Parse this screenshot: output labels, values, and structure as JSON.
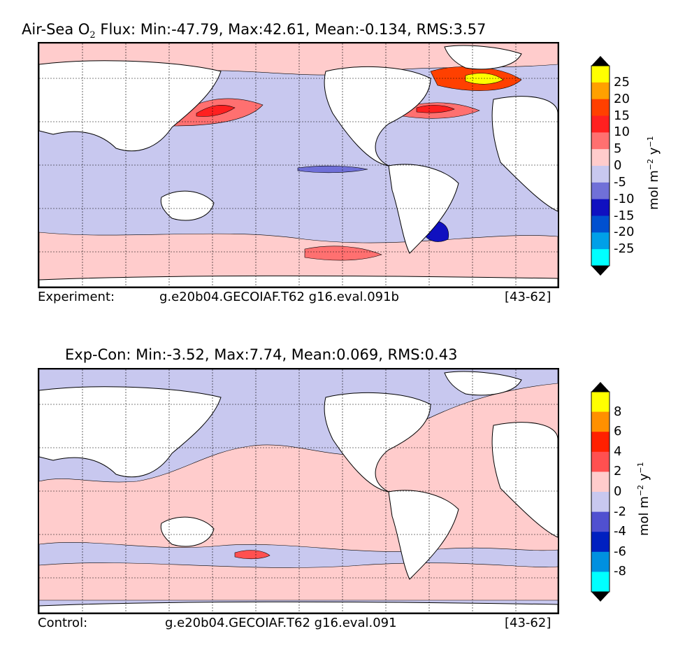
{
  "panels": [
    {
      "title_pre": "Air-Sea O",
      "title_sub": "2",
      "title_post": " Flux: Min:-47.79, Max:42.61, Mean:-0.134, RMS:3.57",
      "footer_label": "Experiment:",
      "footer_run": "g.e20b04.GECOIAF.T62 g16.eval.091b",
      "footer_range": "[43-62]",
      "colorbar": {
        "ticks": [
          "25",
          "20",
          "15",
          "10",
          "5",
          "0",
          "-5",
          "-10",
          "-15",
          "-20",
          "-25"
        ],
        "colors": [
          "#ffff00",
          "#ffa000",
          "#ff4000",
          "#ff2020",
          "#ff7070",
          "#ffcccc",
          "#c8c8ef",
          "#7070d8",
          "#1010c0",
          "#0050d0",
          "#00a0e8",
          "#00ffff"
        ],
        "unit_main": "mol m",
        "unit_exp1": "−2",
        "unit_mid": " y",
        "unit_exp2": "−1"
      }
    },
    {
      "title_pre": "Exp-Con: Min:-3.52, Max:7.74, Mean:0.069, RMS:0.43",
      "title_sub": "",
      "title_post": "",
      "footer_label": "Control:",
      "footer_run": "g.e20b04.GECOIAF.T62 g16.eval.091",
      "footer_range": "[43-62]",
      "colorbar": {
        "ticks": [
          "8",
          "6",
          "4",
          "2",
          "0",
          "-2",
          "-4",
          "-6",
          "-8"
        ],
        "colors": [
          "#ffff00",
          "#ff9000",
          "#ff2000",
          "#ff5050",
          "#ffcccc",
          "#c8c8ef",
          "#5050d0",
          "#0020c0",
          "#0090e0",
          "#00ffff"
        ],
        "unit_main": "mol m",
        "unit_exp1": "−2",
        "unit_mid": " y",
        "unit_exp2": "−1"
      }
    }
  ]
}
